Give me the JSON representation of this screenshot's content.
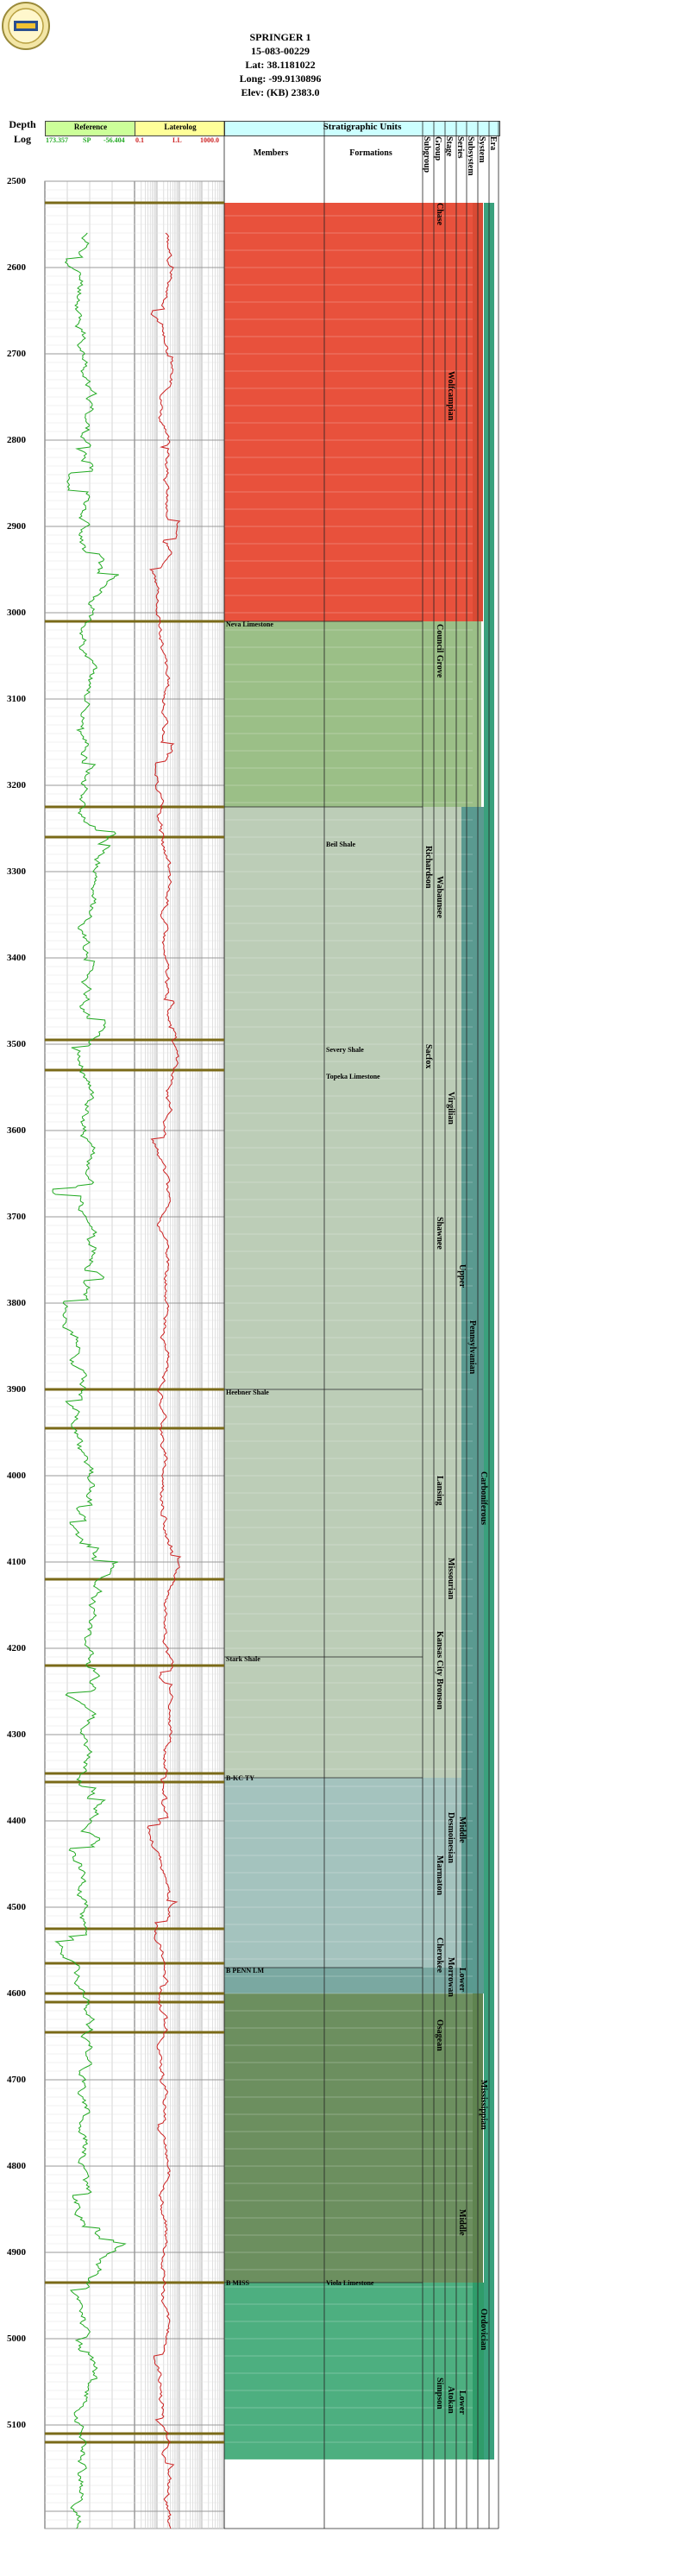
{
  "well": {
    "name": "SPRINGER 1",
    "api": "15-083-00229",
    "lat": "Lat: 38.1181022",
    "long": "Long: -99.9130896",
    "elev": "Elev: (KB) 2383.0"
  },
  "columns": {
    "depth": "Depth",
    "log": "Log",
    "reference": "Reference",
    "ref_scale_left": "173.357",
    "ref_curve": "SP",
    "ref_scale_right": "-56.404",
    "laterolog": "Laterolog",
    "lat_scale_left": "0.1",
    "lat_curve": "LL",
    "lat_scale_right": "1000.0",
    "strat_units": "Stratigraphic Units",
    "members": "Members",
    "formations": "Formations",
    "subgroup": "Subgroup",
    "group": "Group",
    "stage": "Stage",
    "series": "Series",
    "subsystem": "Subsystem",
    "system": "System",
    "era": "Era"
  },
  "depths": [
    "2500",
    "2600",
    "2700",
    "2800",
    "2900",
    "3000",
    "3100",
    "3200",
    "3300",
    "3400",
    "3500",
    "3600",
    "3700",
    "3800",
    "3900",
    "4000",
    "4100",
    "4200",
    "4300",
    "4400",
    "4500",
    "4600",
    "4700",
    "4800",
    "4900",
    "5000",
    "5100"
  ],
  "member_labels": [
    {
      "text": "Neva Limestone",
      "depth": 3013
    },
    {
      "text": "Heebner Shale",
      "depth": 3903
    },
    {
      "text": "Stark Shale",
      "depth": 4212
    },
    {
      "text": "B-KC TY",
      "depth": 4350
    },
    {
      "text": "B PENN LM",
      "depth": 4573
    },
    {
      "text": "B MISS",
      "depth": 4935
    }
  ],
  "formation_labels": [
    {
      "text": "Beil Shale",
      "depth": 3268
    },
    {
      "text": "Severy Shale",
      "depth": 3506
    },
    {
      "text": "Topeka Limestone",
      "depth": 3537
    },
    {
      "text": "Viola Limestone",
      "depth": 4935
    }
  ],
  "subgroup_labels": [
    {
      "text": "Richardson",
      "depth": 3270
    },
    {
      "text": "Sacfox",
      "depth": 3500
    }
  ],
  "group_labels": [
    {
      "text": "Chase",
      "depth": 2525
    },
    {
      "text": "Council Grove",
      "depth": 3013
    },
    {
      "text": "Wabaunsee",
      "depth": 3305
    },
    {
      "text": "Shawnee",
      "depth": 3700
    },
    {
      "text": "Lansing",
      "depth": 4000
    },
    {
      "text": "Kansas City",
      "depth": 4180
    },
    {
      "text": "Bronson",
      "depth": 4235
    },
    {
      "text": "Marmaton",
      "depth": 4440
    },
    {
      "text": "Cherokee",
      "depth": 4535
    },
    {
      "text": "Osagean",
      "depth": 4630
    },
    {
      "text": "Simpson",
      "depth": 5045
    }
  ],
  "stage_labels": [
    {
      "text": "Wolfcampian",
      "depth": 2720
    },
    {
      "text": "Virgilian",
      "depth": 3555
    },
    {
      "text": "Missourian",
      "depth": 4095
    },
    {
      "text": "Desmoinesian",
      "depth": 4390
    },
    {
      "text": "Morrowan",
      "depth": 4558
    },
    {
      "text": "Atokan",
      "depth": 5055
    }
  ],
  "series_labels": [
    {
      "text": "Upper",
      "depth": 3755
    },
    {
      "text": "Middle",
      "depth": 4395
    },
    {
      "text": "Lower",
      "depth": 4570
    },
    {
      "text": "Middle",
      "depth": 4850
    },
    {
      "text": "Lower",
      "depth": 5060
    }
  ],
  "subsystem_labels": [
    {
      "text": "Pennsylvanian",
      "depth": 3820
    }
  ],
  "system_labels": [
    {
      "text": "Carboniferous",
      "depth": 3995
    },
    {
      "text": "Mississippian",
      "depth": 4700
    },
    {
      "text": "Ordovician",
      "depth": 4965
    }
  ],
  "colors": {
    "permian": "#e8513c",
    "council_grove": "#9bbf87",
    "upper_penn": "#bccdb7",
    "middle_penn": "#a4c3be",
    "lower_penn": "#7aa8a1",
    "mississippian": "#6c8f5f",
    "ordovician": "#4daf80",
    "sp_curve": "#22aa22",
    "ll_curve": "#cc2222",
    "tops": "#7a6a18",
    "ref_header": "#ccff99",
    "lat_header": "#ffff99",
    "strat_header": "#ccffff"
  }
}
